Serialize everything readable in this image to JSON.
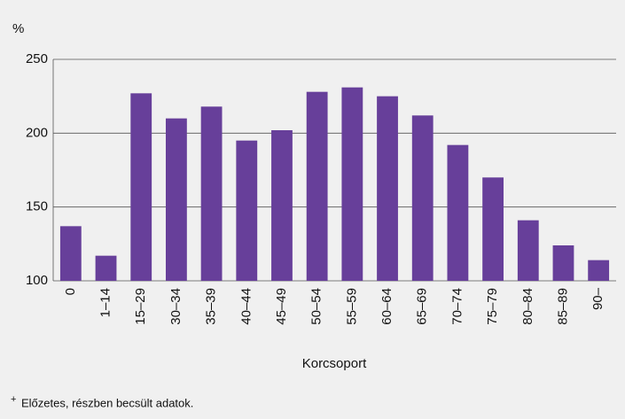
{
  "chart_data": {
    "type": "bar",
    "y_label": "%",
    "x_label": "Korcsoport",
    "footnote_marker": "+",
    "footnote": "Előzetes, részben becsült adatok.",
    "categories": [
      "0",
      "1–14",
      "15–29",
      "30–34",
      "35–39",
      "40–44",
      "45–49",
      "50–54",
      "55–59",
      "60–64",
      "65–69",
      "70–74",
      "75–79",
      "80–84",
      "85–89",
      "90–"
    ],
    "values": [
      137,
      117,
      227,
      210,
      218,
      195,
      202,
      228,
      231,
      225,
      212,
      192,
      170,
      141,
      124,
      114
    ],
    "color": "#673f9a",
    "ylim": [
      100,
      250
    ],
    "yticks": [
      100,
      150,
      200,
      250
    ],
    "grid": true
  }
}
